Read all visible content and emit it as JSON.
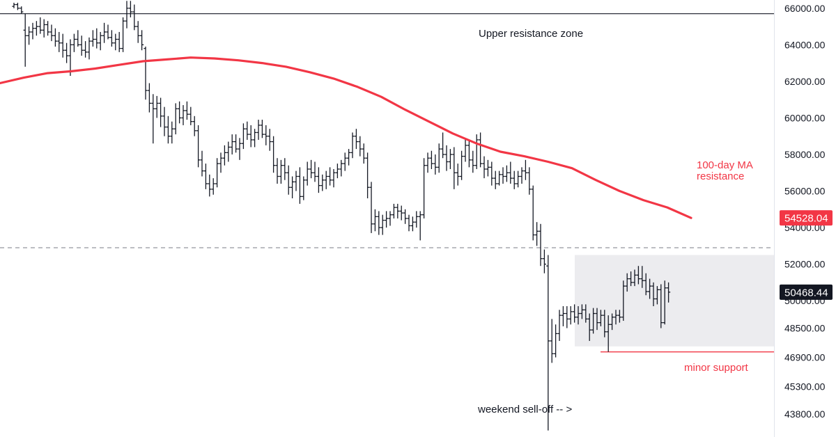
{
  "chart_data": {
    "type": "ohlc",
    "y_axis": {
      "side": "right",
      "ticks": [
        43800,
        45300,
        46900,
        48500,
        50000,
        52000,
        54000,
        56000,
        58000,
        60000,
        62000,
        64000,
        66000
      ],
      "tick_labels": [
        "43800.00",
        "45300.00",
        "46900.00",
        "48500.00",
        "50000.00",
        "52000.00",
        "54000.00",
        "56000.00",
        "58000.00",
        "60000.00",
        "62000.00",
        "64000.00",
        "66000.00"
      ]
    },
    "grid": false,
    "price_badges": [
      {
        "value": 54528.04,
        "label": "54528.04",
        "color": "#f23645"
      },
      {
        "value": 50468.44,
        "label": "50468.44",
        "color": "#131722"
      }
    ],
    "horizontal_lines": [
      {
        "value": 65700,
        "style": "solid",
        "color": "#131722"
      },
      {
        "value": 52900,
        "style": "dashed",
        "color": "#787b86"
      },
      {
        "value": 47200,
        "style": "solid",
        "color": "#f23645"
      }
    ],
    "zone": {
      "from": 47500,
      "to": 52500,
      "color": "#ececef"
    },
    "annotations": {
      "upper_zone": "Upper resistance zone",
      "ma_line1": "100-day MA",
      "ma_line2": "resistance",
      "minor_support": "minor support",
      "selloff": "weekend sell-off -- >"
    },
    "ma_series": {
      "name": "100-day MA",
      "color": "#f23645",
      "values": [
        61900,
        62200,
        62450,
        62550,
        62700,
        62900,
        63100,
        63200,
        63300,
        63250,
        63150,
        63000,
        62800,
        62500,
        62150,
        61700,
        61150,
        60450,
        59800,
        59150,
        58600,
        58150,
        57900,
        57600,
        57250,
        56600,
        56000,
        55500,
        55100,
        54528.04
      ]
    },
    "bars": [
      [
        66100,
        66300,
        66000,
        66200
      ],
      [
        66200,
        66300,
        65900,
        66000
      ],
      [
        66000,
        66100,
        65700,
        65800
      ],
      [
        64800,
        65700,
        62800,
        64500
      ],
      [
        64500,
        65000,
        64000,
        64700
      ],
      [
        64700,
        65200,
        64300,
        64900
      ],
      [
        64900,
        65300,
        64500,
        65000
      ],
      [
        65000,
        65500,
        64600,
        64800
      ],
      [
        64800,
        65400,
        64400,
        65100
      ],
      [
        65100,
        65300,
        64500,
        64700
      ],
      [
        64700,
        65100,
        64200,
        64500
      ],
      [
        64500,
        64900,
        63900,
        64200
      ],
      [
        64200,
        64700,
        63600,
        64100
      ],
      [
        64100,
        64600,
        63300,
        63700
      ],
      [
        63700,
        64100,
        63000,
        63400
      ],
      [
        63400,
        64300,
        62300,
        64000
      ],
      [
        64000,
        64600,
        63600,
        64300
      ],
      [
        64300,
        64800,
        63900,
        64000
      ],
      [
        64000,
        64500,
        63400,
        63700
      ],
      [
        63700,
        64200,
        63300,
        63600
      ],
      [
        63600,
        64400,
        63200,
        64200
      ],
      [
        64200,
        64800,
        63900,
        64300
      ],
      [
        64300,
        64900,
        63800,
        64100
      ],
      [
        64100,
        64700,
        63700,
        64500
      ],
      [
        64500,
        65200,
        64100,
        64700
      ],
      [
        64700,
        65100,
        64300,
        64400
      ],
      [
        64400,
        64800,
        63900,
        64100
      ],
      [
        64100,
        64600,
        63700,
        64300
      ],
      [
        64300,
        64700,
        63600,
        63800
      ],
      [
        63800,
        65500,
        63600,
        65300
      ],
      [
        65300,
        66400,
        64900,
        66000
      ],
      [
        66000,
        66400,
        65500,
        65800
      ],
      [
        65800,
        66200,
        64800,
        65000
      ],
      [
        65000,
        65300,
        64100,
        64500
      ],
      [
        64500,
        64800,
        63700,
        64000
      ],
      [
        63800,
        63900,
        61000,
        61500
      ],
      [
        61500,
        61900,
        60300,
        60800
      ],
      [
        60800,
        61300,
        58600,
        60500
      ],
      [
        60500,
        61200,
        60000,
        60800
      ],
      [
        60800,
        61100,
        59500,
        60100
      ],
      [
        60100,
        60600,
        59000,
        59500
      ],
      [
        59500,
        60100,
        58600,
        59000
      ],
      [
        59000,
        59800,
        58600,
        59400
      ],
      [
        59400,
        60800,
        59100,
        60500
      ],
      [
        60500,
        60900,
        59700,
        60000
      ],
      [
        60000,
        60700,
        59600,
        60400
      ],
      [
        60400,
        60900,
        59900,
        60200
      ],
      [
        60200,
        60600,
        59600,
        59800
      ],
      [
        59800,
        60100,
        59000,
        59300
      ],
      [
        59300,
        59600,
        57300,
        57700
      ],
      [
        57700,
        58200,
        56800,
        57100
      ],
      [
        57100,
        57500,
        56100,
        56400
      ],
      [
        56400,
        56900,
        55700,
        56100
      ],
      [
        56100,
        56700,
        55800,
        56400
      ],
      [
        56400,
        57800,
        56200,
        57500
      ],
      [
        57500,
        58100,
        57000,
        57800
      ],
      [
        57800,
        58500,
        57400,
        58100
      ],
      [
        58100,
        58700,
        57600,
        58400
      ],
      [
        58400,
        59100,
        58000,
        58700
      ],
      [
        58700,
        59100,
        58100,
        58300
      ],
      [
        58300,
        58900,
        57700,
        58600
      ],
      [
        58600,
        59700,
        58300,
        59400
      ],
      [
        59400,
        59800,
        58800,
        59100
      ],
      [
        59100,
        59600,
        58400,
        58800
      ],
      [
        58800,
        59400,
        58400,
        59200
      ],
      [
        59200,
        59900,
        58800,
        59600
      ],
      [
        59600,
        59900,
        58900,
        59100
      ],
      [
        59100,
        59600,
        58500,
        59000
      ],
      [
        59000,
        59400,
        58200,
        58700
      ],
      [
        58700,
        59000,
        57000,
        57400
      ],
      [
        57400,
        57800,
        56400,
        56800
      ],
      [
        56800,
        57700,
        56400,
        57400
      ],
      [
        57400,
        57800,
        56600,
        57000
      ],
      [
        57000,
        57400,
        55800,
        56200
      ],
      [
        56200,
        56800,
        55600,
        56500
      ],
      [
        56500,
        57100,
        56000,
        56800
      ],
      [
        56800,
        57300,
        55300,
        55700
      ],
      [
        55700,
        56800,
        55500,
        56600
      ],
      [
        56600,
        57600,
        56300,
        57200
      ],
      [
        57200,
        57700,
        56700,
        57000
      ],
      [
        57000,
        57600,
        56500,
        56800
      ],
      [
        56800,
        57300,
        55900,
        56300
      ],
      [
        56300,
        56900,
        56000,
        56600
      ],
      [
        56600,
        57100,
        56100,
        56800
      ],
      [
        56800,
        57300,
        56300,
        56600
      ],
      [
        56600,
        57200,
        56200,
        57000
      ],
      [
        57000,
        57500,
        56700,
        57200
      ],
      [
        57200,
        57700,
        56800,
        57500
      ],
      [
        57500,
        58100,
        57100,
        57800
      ],
      [
        57800,
        58300,
        57400,
        58100
      ],
      [
        58100,
        59200,
        57800,
        59000
      ],
      [
        59000,
        59400,
        58300,
        58700
      ],
      [
        58700,
        59000,
        57900,
        58300
      ],
      [
        58300,
        58600,
        57500,
        57800
      ],
      [
        57800,
        58100,
        55600,
        56200
      ],
      [
        56200,
        56500,
        53700,
        54200
      ],
      [
        54200,
        55000,
        53800,
        54600
      ],
      [
        54600,
        54900,
        53600,
        54000
      ],
      [
        54000,
        54700,
        53600,
        54400
      ],
      [
        54400,
        54900,
        54000,
        54500
      ],
      [
        54500,
        54900,
        54100,
        54700
      ],
      [
        54700,
        55300,
        54500,
        55100
      ],
      [
        55100,
        55300,
        54500,
        54900
      ],
      [
        54900,
        55200,
        54400,
        54800
      ],
      [
        54800,
        55000,
        54200,
        54500
      ],
      [
        54500,
        54700,
        53800,
        54100
      ],
      [
        54100,
        54600,
        53800,
        54300
      ],
      [
        54300,
        54900,
        54000,
        54600
      ],
      [
        54600,
        54900,
        53300,
        54700
      ],
      [
        54700,
        57800,
        54500,
        57400
      ],
      [
        57400,
        58100,
        57000,
        57800
      ],
      [
        57800,
        58200,
        57200,
        57500
      ],
      [
        57500,
        58000,
        56900,
        57300
      ],
      [
        57300,
        58600,
        57000,
        58300
      ],
      [
        58300,
        59200,
        57800,
        58000
      ],
      [
        58000,
        58500,
        57100,
        57600
      ],
      [
        57600,
        58300,
        57200,
        58000
      ],
      [
        58000,
        58400,
        56100,
        57000
      ],
      [
        57000,
        57500,
        56300,
        56800
      ],
      [
        56800,
        58200,
        56600,
        57900
      ],
      [
        57900,
        58900,
        57600,
        58500
      ],
      [
        58500,
        58800,
        57300,
        57700
      ],
      [
        57700,
        58200,
        57000,
        57400
      ],
      [
        57400,
        59100,
        57200,
        58800
      ],
      [
        58800,
        59200,
        57300,
        57500
      ],
      [
        57500,
        57900,
        56700,
        57200
      ],
      [
        57200,
        57700,
        56800,
        57300
      ],
      [
        57300,
        57600,
        56300,
        56700
      ],
      [
        56700,
        57100,
        56100,
        56400
      ],
      [
        56400,
        57100,
        56300,
        56900
      ],
      [
        56900,
        57300,
        56400,
        56800
      ],
      [
        56800,
        57400,
        56500,
        57000
      ],
      [
        57000,
        57600,
        56400,
        56700
      ],
      [
        56700,
        57100,
        56100,
        56400
      ],
      [
        56400,
        57100,
        56200,
        56800
      ],
      [
        56800,
        57300,
        56400,
        57100
      ],
      [
        57100,
        57700,
        56600,
        57000
      ],
      [
        57000,
        57300,
        55800,
        56100
      ],
      [
        56100,
        56300,
        53300,
        53600
      ],
      [
        53600,
        54300,
        53000,
        53800
      ],
      [
        53800,
        54200,
        51900,
        52300
      ],
      [
        52300,
        52800,
        51500,
        52000
      ],
      [
        51900,
        52500,
        42900,
        47800
      ],
      [
        47800,
        49000,
        46600,
        47100
      ],
      [
        47100,
        48700,
        46900,
        48200
      ],
      [
        48200,
        49500,
        47800,
        49200
      ],
      [
        49200,
        49700,
        48600,
        49300
      ],
      [
        49300,
        49700,
        48500,
        49000
      ],
      [
        49000,
        49700,
        48700,
        49400
      ],
      [
        49400,
        49800,
        48800,
        49100
      ],
      [
        49100,
        49700,
        48700,
        49300
      ],
      [
        49300,
        49800,
        49000,
        49500
      ],
      [
        49500,
        49800,
        48800,
        49000
      ],
      [
        49000,
        49300,
        47800,
        48400
      ],
      [
        48400,
        49600,
        48200,
        49300
      ],
      [
        49300,
        49600,
        48400,
        48800
      ],
      [
        48800,
        49500,
        48600,
        49200
      ],
      [
        49200,
        49500,
        48000,
        48300
      ],
      [
        48300,
        49200,
        47200,
        48700
      ],
      [
        48700,
        49300,
        48400,
        49100
      ],
      [
        49100,
        49500,
        48700,
        49200
      ],
      [
        49200,
        49500,
        48800,
        49100
      ],
      [
        49100,
        51100,
        48900,
        50800
      ],
      [
        50800,
        51500,
        50500,
        51200
      ],
      [
        51200,
        51600,
        50800,
        51000
      ],
      [
        51000,
        51700,
        50800,
        51400
      ],
      [
        51400,
        51900,
        50900,
        51200
      ],
      [
        51200,
        51900,
        50700,
        51100
      ],
      [
        51100,
        51500,
        50300,
        50500
      ],
      [
        50500,
        51200,
        50100,
        50800
      ],
      [
        50800,
        51000,
        49700,
        50100
      ],
      [
        50100,
        50800,
        49800,
        50600
      ],
      [
        50600,
        50900,
        48500,
        48800
      ],
      [
        48800,
        51100,
        48700,
        50700
      ],
      [
        50700,
        51000,
        49900,
        50468.44
      ]
    ]
  }
}
